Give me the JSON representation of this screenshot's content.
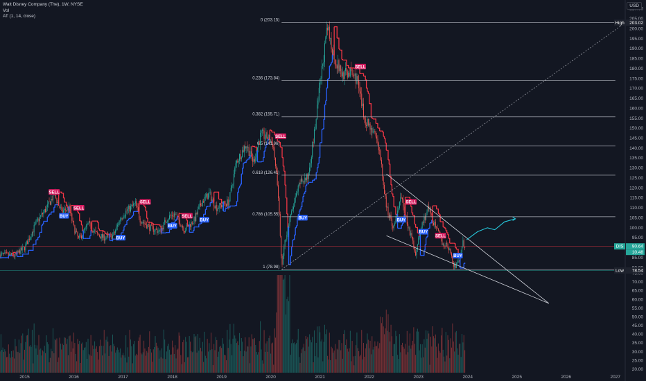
{
  "header": {
    "title": "Walt Disney Company (The), 1W, NYSE",
    "indicator_vol": "Vol",
    "indicator_at": "AT (1, 14, close)",
    "currency": "USD"
  },
  "colors": {
    "background": "#131722",
    "up_candle": "#26a69a",
    "down_candle": "#ef5350",
    "at_line_red": "#f23645",
    "at_line_blue": "#2962ff",
    "buy_tag": "#2962ff",
    "sell_tag": "#d81b60",
    "fib_line": "#b2b5be",
    "projection": "#26c6da"
  },
  "chart_data": {
    "type": "candlestick",
    "title": "Walt Disney Company (The), 1W, NYSE",
    "x_axis": {
      "labels": [
        "2015",
        "2016",
        "2017",
        "2018",
        "2019",
        "2020",
        "2021",
        "2022",
        "2023",
        "2024",
        "2025",
        "2026",
        "2027"
      ],
      "range": [
        2014.5,
        2027.2
      ]
    },
    "y_axis": {
      "range": [
        78,
        212
      ],
      "ticks": [
        210,
        205,
        200,
        195,
        190,
        185,
        180,
        175,
        170,
        165,
        160,
        155,
        150,
        145,
        140,
        135,
        130,
        125,
        120,
        115,
        110,
        105,
        100,
        95,
        90,
        85,
        80
      ],
      "tick_labels": [
        "210.00",
        "205.00",
        "200.00",
        "195.00",
        "190.00",
        "185.00",
        "180.00",
        "175.00",
        "170.00",
        "165.00",
        "160.00",
        "155.00",
        "150.00",
        "145.00",
        "140.00",
        "135.00",
        "130.00",
        "125.00",
        "120.00",
        "115.00",
        "110.00",
        "105.00",
        "100.00",
        "95.00",
        "90.00",
        "85.00",
        "80.00"
      ],
      "scale": "linear"
    },
    "volume_axis": {
      "range": [
        18,
        76
      ],
      "ticks": [
        75,
        70,
        65,
        60,
        55,
        50,
        45,
        40,
        35,
        30,
        25,
        20
      ],
      "tick_labels": [
        "75.00",
        "70.00",
        "65.00",
        "60.00",
        "55.00",
        "50.00",
        "45.00",
        "40.00",
        "35.00",
        "30.00",
        "25.00",
        "20.00"
      ]
    },
    "price_path": [
      [
        2014.5,
        86.5
      ],
      [
        2014.8,
        86
      ],
      [
        2015.0,
        90
      ],
      [
        2015.25,
        103
      ],
      [
        2015.45,
        110
      ],
      [
        2015.6,
        117
      ],
      [
        2015.75,
        108
      ],
      [
        2015.9,
        110
      ],
      [
        2016.0,
        100
      ],
      [
        2016.1,
        94
      ],
      [
        2016.3,
        102
      ],
      [
        2016.45,
        97
      ],
      [
        2016.6,
        95
      ],
      [
        2016.8,
        96
      ],
      [
        2016.95,
        105
      ],
      [
        2017.05,
        108
      ],
      [
        2017.25,
        112
      ],
      [
        2017.35,
        104
      ],
      [
        2017.55,
        100
      ],
      [
        2017.75,
        98
      ],
      [
        2017.9,
        105
      ],
      [
        2018.05,
        107
      ],
      [
        2018.25,
        99
      ],
      [
        2018.45,
        104
      ],
      [
        2018.6,
        113
      ],
      [
        2018.75,
        117
      ],
      [
        2018.9,
        110
      ],
      [
        2019.05,
        112
      ],
      [
        2019.15,
        113
      ],
      [
        2019.3,
        133
      ],
      [
        2019.5,
        142
      ],
      [
        2019.65,
        133
      ],
      [
        2019.8,
        147
      ],
      [
        2019.95,
        145
      ],
      [
        2020.05,
        142
      ],
      [
        2020.15,
        118
      ],
      [
        2020.22,
        80
      ],
      [
        2020.3,
        95
      ],
      [
        2020.45,
        110
      ],
      [
        2020.6,
        123
      ],
      [
        2020.75,
        125
      ],
      [
        2020.9,
        150
      ],
      [
        2021.0,
        172
      ],
      [
        2021.15,
        200
      ],
      [
        2021.3,
        185
      ],
      [
        2021.45,
        177
      ],
      [
        2021.6,
        178
      ],
      [
        2021.75,
        175
      ],
      [
        2021.9,
        155
      ],
      [
        2022.05,
        150
      ],
      [
        2022.2,
        140
      ],
      [
        2022.35,
        110
      ],
      [
        2022.5,
        100
      ],
      [
        2022.65,
        115
      ],
      [
        2022.8,
        100
      ],
      [
        2022.95,
        87
      ],
      [
        2023.05,
        100
      ],
      [
        2023.2,
        110
      ],
      [
        2023.35,
        100
      ],
      [
        2023.5,
        92
      ],
      [
        2023.62,
        90
      ],
      [
        2023.72,
        80
      ],
      [
        2023.82,
        83
      ],
      [
        2023.9,
        93
      ],
      [
        2023.95,
        90.5
      ]
    ],
    "fib_levels": [
      {
        "ratio": 0,
        "price": 203.15,
        "label": "0 (203.15)"
      },
      {
        "ratio": 0.236,
        "price": 173.84,
        "label": "0.236 (173.84)"
      },
      {
        "ratio": 0.382,
        "price": 155.71,
        "label": "0.382 (155.71)"
      },
      {
        "ratio": 0.5,
        "price": 141.06,
        "label": "0.5 (141.06)"
      },
      {
        "ratio": 0.618,
        "price": 126.41,
        "label": "0.618 (126.41)"
      },
      {
        "ratio": 0.786,
        "price": 105.55,
        "label": "0.786 (105.55)"
      },
      {
        "ratio": 1,
        "price": 78.98,
        "label": "1 (78.98)"
      }
    ],
    "signals": [
      {
        "type": "SELL",
        "x": 2015.6,
        "price": 118
      },
      {
        "type": "BUY",
        "x": 2015.8,
        "price": 106
      },
      {
        "type": "SELL",
        "x": 2016.1,
        "price": 110
      },
      {
        "type": "BUY",
        "x": 2016.95,
        "price": 95
      },
      {
        "type": "SELL",
        "x": 2017.45,
        "price": 113
      },
      {
        "type": "BUY",
        "x": 2018.0,
        "price": 101
      },
      {
        "type": "SELL",
        "x": 2018.3,
        "price": 106
      },
      {
        "type": "BUY",
        "x": 2018.65,
        "price": 104
      },
      {
        "type": "SELL",
        "x": 2020.2,
        "price": 146
      },
      {
        "type": "BUY",
        "x": 2020.65,
        "price": 105
      },
      {
        "type": "SELL",
        "x": 2021.82,
        "price": 181
      },
      {
        "type": "BUY",
        "x": 2022.65,
        "price": 104
      },
      {
        "type": "SELL",
        "x": 2022.85,
        "price": 113
      },
      {
        "type": "BUY",
        "x": 2023.1,
        "price": 98
      },
      {
        "type": "SELL",
        "x": 2023.45,
        "price": 96
      },
      {
        "type": "BUY",
        "x": 2023.8,
        "price": 86
      }
    ],
    "trend_lines": {
      "diagonal": [
        [
          2020.22,
          79
        ],
        [
          2027.2,
          203
        ]
      ],
      "wedge_upper": [
        [
          2022.35,
          127
        ],
        [
          2025.65,
          62
        ]
      ],
      "wedge_lower": [
        [
          2022.35,
          96
        ],
        [
          2025.65,
          62
        ]
      ]
    },
    "projection": [
      [
        2023.98,
        94
      ],
      [
        2024.2,
        98
      ],
      [
        2024.4,
        100
      ],
      [
        2024.55,
        99
      ],
      [
        2024.75,
        103
      ],
      [
        2024.97,
        104.5
      ]
    ],
    "price_labels": {
      "high": {
        "label": "High",
        "value": "203.02",
        "price": 203.02
      },
      "current": {
        "label": "DIS",
        "value": "90.64",
        "extra": "10.48",
        "price": 90.64
      },
      "low": {
        "label": "Low",
        "value": "78.54",
        "price": 78.54
      }
    }
  }
}
